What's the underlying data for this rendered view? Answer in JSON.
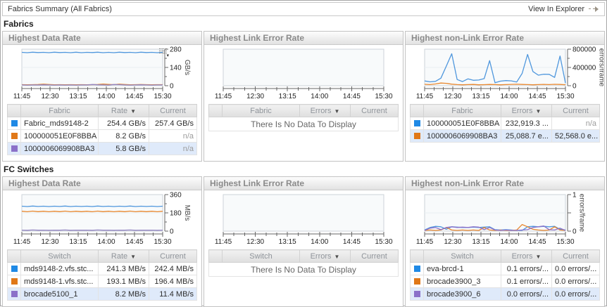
{
  "header": {
    "title": "Fabrics Summary (All Fabrics)",
    "action_label": "View In Explorer"
  },
  "colors": {
    "series_blue": "#4f97dd",
    "series_orange": "#e8872e",
    "series_purple": "#9183c0",
    "swatch_blue": "#1f89e5",
    "swatch_orange": "#e07818",
    "swatch_purple": "#8b71c9",
    "selected_row_bg": "#dfeafa"
  },
  "x_labels": [
    "11:45",
    "12:30",
    "13:15",
    "14:00",
    "14:45",
    "15:30"
  ],
  "no_data_text": "There Is No Data To Display",
  "sections": [
    {
      "title": "Fabrics",
      "panels": [
        {
          "title": "Highest Data Rate",
          "legend_icon": true,
          "chart_data": {
            "type": "line",
            "x_labels": [
              "11:45",
              "12:30",
              "13:15",
              "14:00",
              "14:45",
              "15:30"
            ],
            "yaxis": {
              "min": 0,
              "max": 280,
              "unit": "GB/s",
              "minor": true,
              "ticks": [
                {
                  "v": 0,
                  "label": "0"
                },
                {
                  "v": 140,
                  "label": "140"
                },
                {
                  "v": 280,
                  "label": "280"
                }
              ]
            },
            "series": [
              {
                "name": "Fabric_mds9148-2",
                "color": "#4f97dd",
                "values": [
                  256,
                  253,
                  257,
                  254,
                  256,
                  253,
                  257,
                  254,
                  256,
                  253,
                  257,
                  253,
                  256,
                  254,
                  257,
                  253,
                  256,
                  253,
                  257,
                  254,
                  256,
                  253,
                  257,
                  254,
                  256,
                  253,
                  256
                ]
              },
              {
                "name": "100000051E0F8BBA",
                "color": "#e8872e",
                "values": [
                  8,
                  7,
                  8,
                  9,
                  12,
                  9,
                  7,
                  8,
                  7,
                  8,
                  7,
                  8,
                  7,
                  8,
                  9,
                  13,
                  10,
                  8,
                  12,
                  9,
                  7,
                  8,
                  9,
                  8,
                  7,
                  8,
                  8
                ]
              },
              {
                "name": "1000006069908BA3",
                "color": "#9183c0",
                "values": [
                  6,
                  5,
                  6,
                  6,
                  7,
                  6,
                  5,
                  6,
                  5,
                  6,
                  5,
                  6,
                  6,
                  9,
                  7,
                  6,
                  5,
                  9,
                  8,
                  6,
                  5,
                  6,
                  7,
                  6,
                  5,
                  6,
                  6
                ]
              }
            ]
          },
          "table": {
            "columns": [
              {
                "label": "Fabric"
              },
              {
                "label": "Rate",
                "sorted": true
              },
              {
                "label": "Current"
              }
            ],
            "rows": [
              {
                "swatch": "#1f89e5",
                "name": "Fabric_mds9148-2",
                "v1": "254.4 GB/s",
                "v2": "257.4 GB/s",
                "selected": false
              },
              {
                "swatch": "#e07818",
                "name": "100000051E0F8BBA",
                "v1": "8.2 GB/s",
                "v2": "n/a",
                "selected": false
              },
              {
                "swatch": "#8b71c9",
                "name": "1000006069908BA3",
                "v1": "5.8 GB/s",
                "v2": "n/a",
                "selected": true
              }
            ],
            "empty": false
          }
        },
        {
          "title": "Highest Link Error Rate",
          "legend_icon": false,
          "chart_data": {
            "type": "line",
            "x_labels": [
              "11:45",
              "12:30",
              "13:15",
              "14:00",
              "14:45",
              "15:30"
            ],
            "yaxis": null,
            "series": []
          },
          "table": {
            "columns": [
              {
                "label": "Fabric"
              },
              {
                "label": "Errors",
                "sorted": true
              },
              {
                "label": "Current"
              }
            ],
            "rows": [],
            "empty": true
          }
        },
        {
          "title": "Highest non-Link Error Rate",
          "legend_icon": false,
          "chart_data": {
            "type": "line",
            "x_labels": [
              "11:45",
              "12:30",
              "13:15",
              "14:00",
              "14:45",
              "15:30"
            ],
            "yaxis": {
              "min": 0,
              "max": 800000,
              "unit": "errors/frame",
              "minor": true,
              "ticks": [
                {
                  "v": 0,
                  "label": "0"
                },
                {
                  "v": 400000,
                  "label": "400000"
                },
                {
                  "v": 800000,
                  "label": "800000"
                }
              ]
            },
            "series": [
              {
                "name": "100000051E0F8BBA",
                "color": "#4f97dd",
                "values": [
                  105000,
                  85000,
                  95000,
                  165000,
                  430000,
                  700000,
                  135000,
                  90000,
                  150000,
                  118000,
                  125000,
                  155000,
                  550000,
                  65000,
                  100000,
                  112000,
                  106000,
                  82000,
                  270000,
                  685000,
                  310000,
                  230000,
                  252000,
                  250000,
                  182000,
                  650000,
                  60000
                ]
              },
              {
                "name": "1000006069908BA3",
                "color": "#e8872e",
                "values": [
                  30000,
                  24000,
                  38000,
                  58000,
                  52000,
                  34000,
                  24000,
                  20000,
                  24000,
                  28000,
                  20000,
                  23000,
                  28000,
                  24000,
                  20000,
                  24000,
                  29000,
                  33000,
                  28000,
                  24000,
                  20000,
                  24000,
                  29000,
                  25000,
                  31000,
                  28000,
                  22000
                ]
              }
            ]
          },
          "table": {
            "columns": [
              {
                "label": "Fabric"
              },
              {
                "label": "Errors",
                "sorted": true
              },
              {
                "label": "Current"
              }
            ],
            "rows": [
              {
                "swatch": "#1f89e5",
                "name": "100000051E0F8BBA",
                "v1": "232,919.3 ...",
                "v2": "n/a",
                "selected": false
              },
              {
                "swatch": "#e07818",
                "name": "1000006069908BA3",
                "v1": "25,088.7 e...",
                "v2": "52,568.0 e...",
                "selected": true
              }
            ],
            "empty": false
          }
        }
      ]
    },
    {
      "title": "FC Switches",
      "panels": [
        {
          "title": "Highest Data Rate",
          "legend_icon": false,
          "chart_data": {
            "type": "line",
            "x_labels": [
              "11:45",
              "12:30",
              "13:15",
              "14:00",
              "14:45",
              "15:30"
            ],
            "yaxis": {
              "min": 0,
              "max": 360,
              "unit": "MB/s",
              "minor": true,
              "ticks": [
                {
                  "v": 0,
                  "label": "0"
                },
                {
                  "v": 180,
                  "label": "180"
                },
                {
                  "v": 360,
                  "label": "360"
                }
              ]
            },
            "series": [
              {
                "name": "mds9148-2.vfs.stc...",
                "color": "#4f97dd",
                "values": [
                  246,
                  242,
                  247,
                  243,
                  246,
                  242,
                  246,
                  243,
                  247,
                  242,
                  246,
                  243,
                  246,
                  242,
                  247,
                  243,
                  246,
                  242,
                  246,
                  243,
                  247,
                  242,
                  246,
                  243,
                  246,
                  242,
                  246
                ]
              },
              {
                "name": "mds9148-1.vfs.stc...",
                "color": "#e8872e",
                "values": [
                  196,
                  191,
                  197,
                  192,
                  196,
                  191,
                  196,
                  192,
                  197,
                  191,
                  196,
                  192,
                  196,
                  191,
                  197,
                  192,
                  196,
                  191,
                  196,
                  192,
                  197,
                  191,
                  196,
                  192,
                  196,
                  191,
                  196
                ]
              },
              {
                "name": "brocade5100_1",
                "color": "#9183c0",
                "values": [
                  10,
                  8,
                  11,
                  9,
                  10,
                  8,
                  10,
                  9,
                  11,
                  8,
                  10,
                  9,
                  10,
                  8,
                  11,
                  9,
                  10,
                  8,
                  10,
                  9,
                  11,
                  8,
                  10,
                  9,
                  10,
                  8,
                  10
                ]
              }
            ]
          },
          "table": {
            "columns": [
              {
                "label": "Switch"
              },
              {
                "label": "Rate",
                "sorted": true
              },
              {
                "label": "Current"
              }
            ],
            "rows": [
              {
                "swatch": "#1f89e5",
                "name": "mds9148-2.vfs.stc...",
                "v1": "241.3 MB/s",
                "v2": "242.4 MB/s",
                "selected": false
              },
              {
                "swatch": "#e07818",
                "name": "mds9148-1.vfs.stc...",
                "v1": "193.1 MB/s",
                "v2": "196.4 MB/s",
                "selected": false
              },
              {
                "swatch": "#8b71c9",
                "name": "brocade5100_1",
                "v1": "8.2 MB/s",
                "v2": "11.4 MB/s",
                "selected": true
              }
            ],
            "empty": false
          }
        },
        {
          "title": "Highest Link Error Rate",
          "legend_icon": false,
          "chart_data": {
            "type": "line",
            "x_labels": [
              "11:45",
              "12:30",
              "13:15",
              "14:00",
              "14:45",
              "15:30"
            ],
            "yaxis": null,
            "series": []
          },
          "table": {
            "columns": [
              {
                "label": "Switch"
              },
              {
                "label": "Errors",
                "sorted": true
              },
              {
                "label": "Current"
              }
            ],
            "rows": [],
            "empty": true
          }
        },
        {
          "title": "Highest non-Link Error Rate",
          "legend_icon": false,
          "chart_data": {
            "type": "line",
            "x_labels": [
              "11:45",
              "12:30",
              "13:15",
              "14:00",
              "14:45",
              "15:30"
            ],
            "yaxis": {
              "min": 0,
              "max": 1,
              "unit": "errors/frame",
              "minor": false,
              "ticks": [
                {
                  "v": 0,
                  "label": "0"
                },
                {
                  "v": 0.5,
                  "label": ""
                },
                {
                  "v": 1,
                  "label": "1"
                }
              ]
            },
            "series": [
              {
                "name": "eva-brcd-1",
                "color": "#4f97dd",
                "values": [
                  0.03,
                  0.1,
                  0.13,
                  0.12,
                  0.05,
                  0.12,
                  0.11,
                  0.1,
                  0.1,
                  0.11,
                  0.1,
                  0.11,
                  0.12,
                  0.04,
                  0.03,
                  0.04,
                  0.03,
                  0.02,
                  0.02,
                  0.12,
                  0.13,
                  0.12,
                  0.13,
                  0.12,
                  0.13,
                  0.05,
                  0.03
                ]
              },
              {
                "name": "brocade3900_3",
                "color": "#e8872e",
                "values": [
                  0.02,
                  0.03,
                  0.02,
                  0.03,
                  0.1,
                  0.03,
                  0.02,
                  0.03,
                  0.02,
                  0.03,
                  0.02,
                  0.1,
                  0.03,
                  0.02,
                  0.03,
                  0.02,
                  0.02,
                  0.03,
                  0.18,
                  0.12,
                  0.05,
                  0.03,
                  0.02,
                  0.03,
                  0.12,
                  0.03,
                  0.02
                ]
              },
              {
                "name": "brocade3900_6",
                "color": "#8b71c9",
                "values": [
                  0.02,
                  0.08,
                  0.1,
                  0.04,
                  0.1,
                  0.12,
                  0.1,
                  0.11,
                  0.1,
                  0.12,
                  0.11,
                  0.04,
                  0.1,
                  0.03,
                  0.02,
                  0.03,
                  0.02,
                  0.02,
                  0.03,
                  0.04,
                  0.1,
                  0.12,
                  0.14,
                  0.04,
                  0.03,
                  0.08,
                  0.02
                ]
              }
            ]
          },
          "table": {
            "columns": [
              {
                "label": "Switch"
              },
              {
                "label": "Errors",
                "sorted": true
              },
              {
                "label": "Current"
              }
            ],
            "rows": [
              {
                "swatch": "#1f89e5",
                "name": "eva-brcd-1",
                "v1": "0.1 errors/...",
                "v2": "0.0 errors/...",
                "selected": false
              },
              {
                "swatch": "#e07818",
                "name": "brocade3900_3",
                "v1": "0.1 errors/...",
                "v2": "0.0 errors/...",
                "selected": false
              },
              {
                "swatch": "#8b71c9",
                "name": "brocade3900_6",
                "v1": "0.0 errors/...",
                "v2": "0.0 errors/...",
                "selected": true
              }
            ],
            "empty": false
          }
        }
      ]
    }
  ]
}
